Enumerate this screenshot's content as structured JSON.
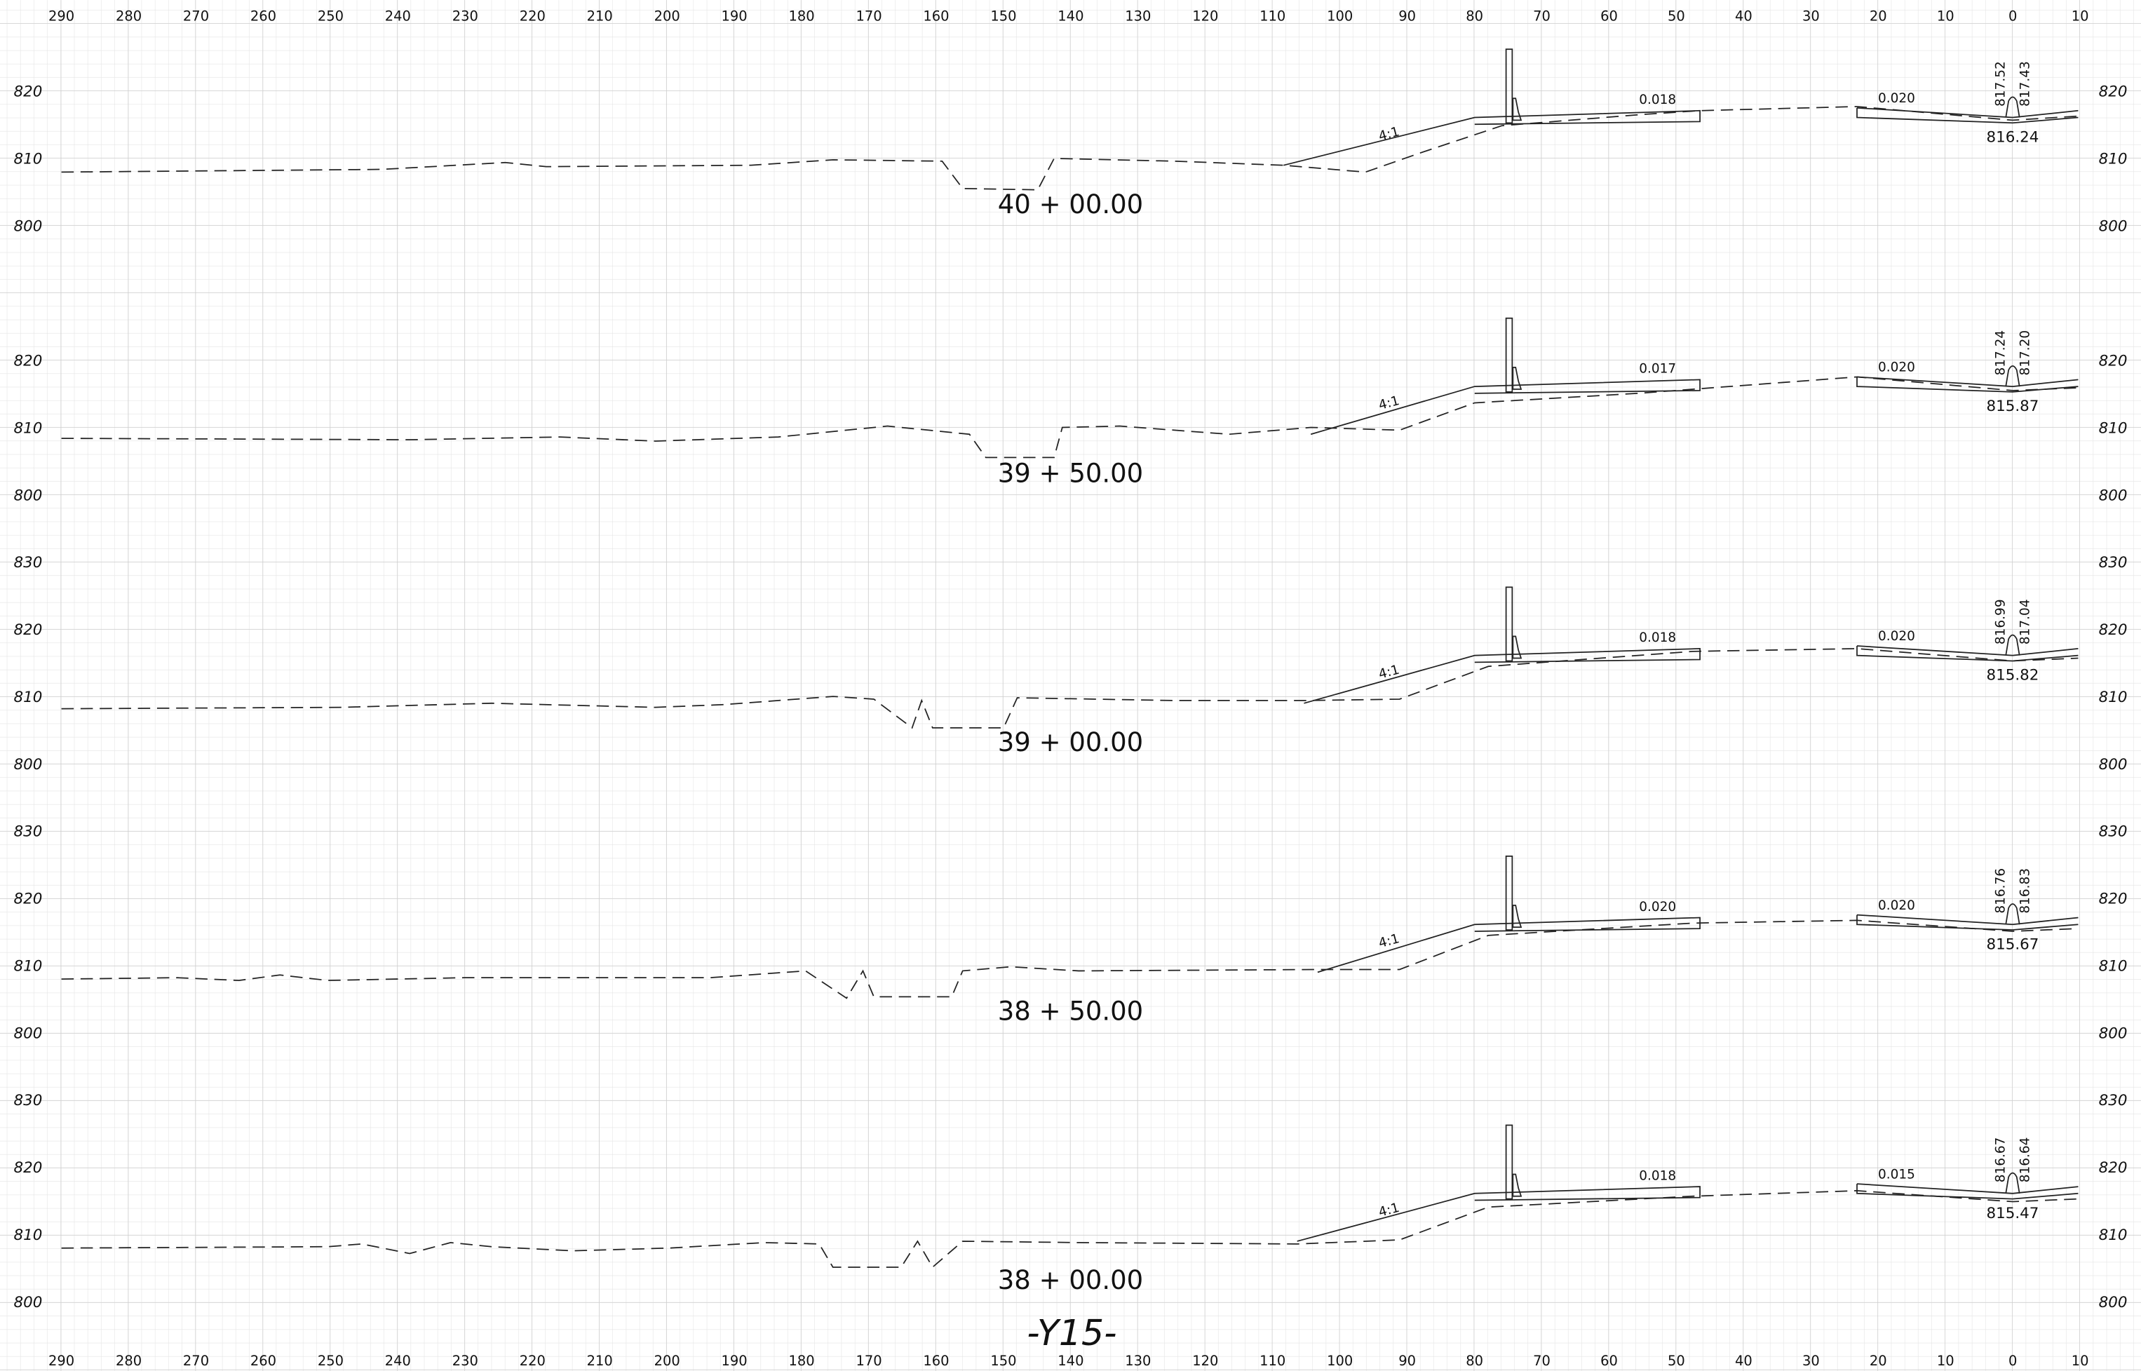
{
  "axis_labels": [
    "290",
    "280",
    "270",
    "260",
    "250",
    "240",
    "230",
    "220",
    "210",
    "200",
    "190",
    "180",
    "170",
    "160",
    "150",
    "140",
    "130",
    "120",
    "110",
    "100",
    "90",
    "80",
    "70",
    "60",
    "50",
    "40",
    "30",
    "20",
    "10",
    "0",
    "10"
  ],
  "sections": [
    {
      "station": "40 + 00.00",
      "elevations": [
        "820",
        "810",
        "800"
      ],
      "slope": "4:1",
      "grade_left": "0.018",
      "grade_right": "0.020",
      "elev_top": [
        "817.52",
        "817.43"
      ],
      "elev_bottom": "816.24"
    },
    {
      "station": "39 + 50.00",
      "elevations": [
        "820",
        "810",
        "800"
      ],
      "slope": "4:1",
      "grade_left": "0.017",
      "grade_right": "0.020",
      "elev_top": [
        "817.24",
        "817.20"
      ],
      "elev_bottom": "815.87"
    },
    {
      "station": "39 + 00.00",
      "elevations": [
        "830",
        "820",
        "810",
        "800"
      ],
      "slope": "4:1",
      "grade_left": "0.018",
      "grade_right": "0.020",
      "elev_top": [
        "816.99",
        "817.04"
      ],
      "elev_bottom": "815.82"
    },
    {
      "station": "38 + 50.00",
      "elevations": [
        "830",
        "820",
        "810",
        "800"
      ],
      "slope": "4:1",
      "grade_left": "0.020",
      "grade_right": "0.020",
      "elev_top": [
        "816.76",
        "816.83"
      ],
      "elev_bottom": "815.67"
    },
    {
      "station": "38 + 00.00",
      "elevations": [
        "830",
        "820",
        "810",
        "800"
      ],
      "slope": "4:1",
      "grade_left": "0.018",
      "grade_right": "0.015",
      "elev_top": [
        "816.67",
        "816.64"
      ],
      "elev_bottom": "815.47"
    }
  ],
  "sheet_label": "-Y15-"
}
